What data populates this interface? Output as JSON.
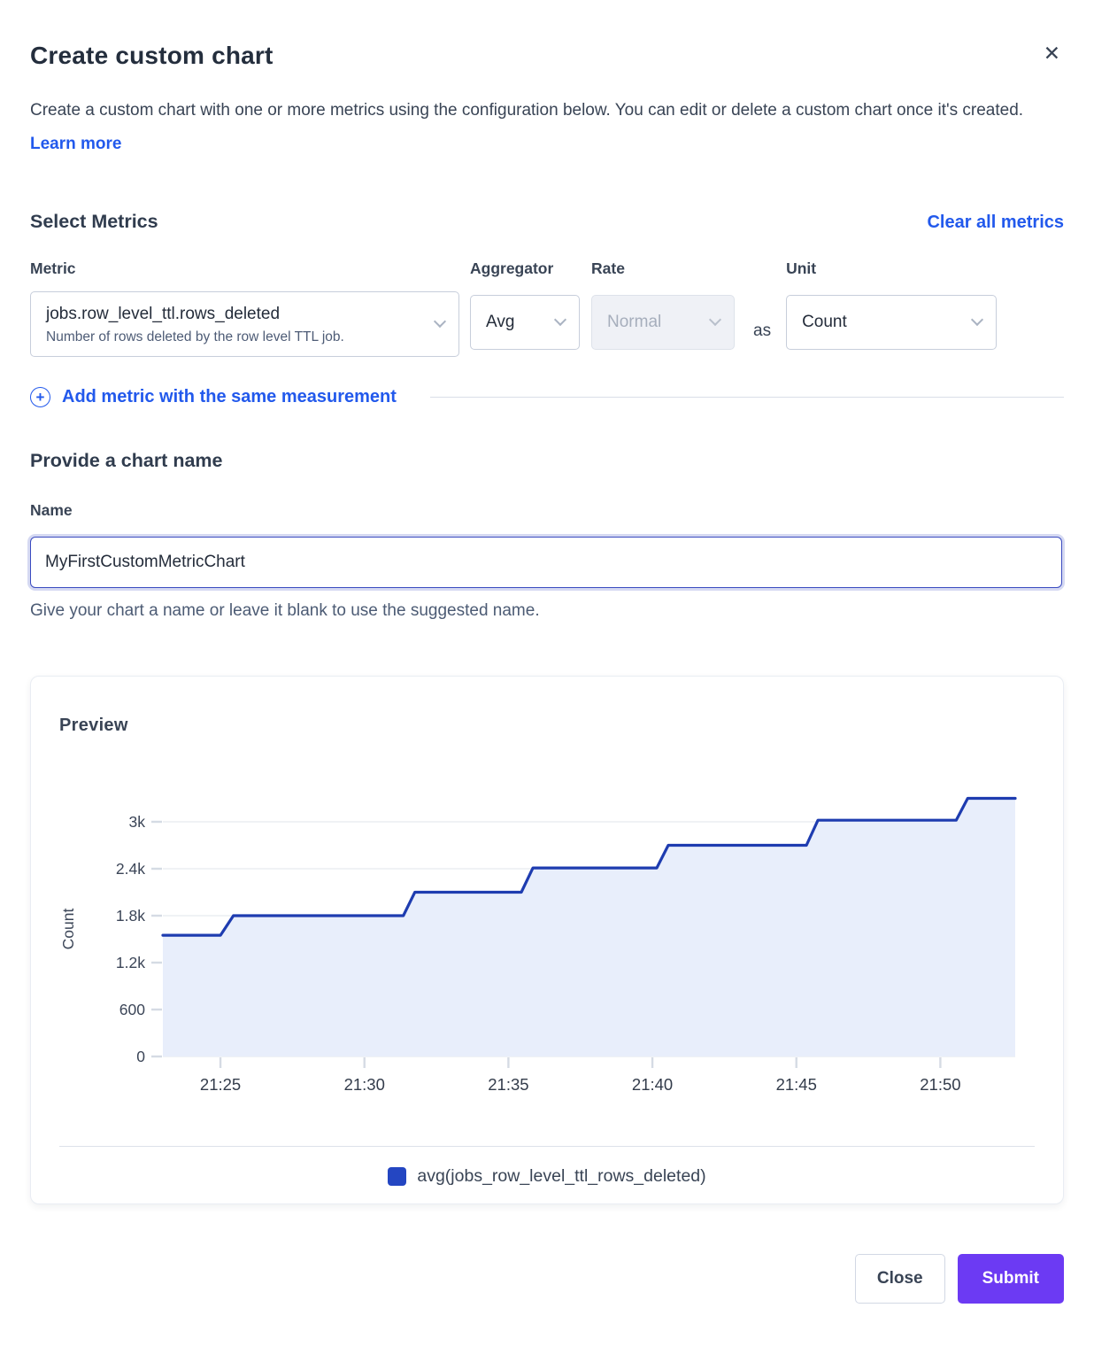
{
  "dialog": {
    "title": "Create custom chart",
    "description": "Create a custom chart with one or more metrics using the configuration below. You can edit or delete a custom chart once it's created.",
    "learn_more_label": "Learn more",
    "close_icon": "close-x"
  },
  "metrics_section": {
    "heading": "Select Metrics",
    "clear_all_label": "Clear all metrics",
    "labels": {
      "metric": "Metric",
      "aggregator": "Aggregator",
      "rate": "Rate",
      "unit": "Unit"
    },
    "metric_row": {
      "metric_value": "jobs.row_level_ttl.rows_deleted",
      "metric_description": "Number of rows deleted by the row level TTL job.",
      "aggregator_value": "Avg",
      "rate_value": "Normal",
      "rate_disabled": true,
      "as_label": "as",
      "unit_value": "Count"
    },
    "add_metric_label": "Add metric with the same measurement"
  },
  "name_section": {
    "heading": "Provide a chart name",
    "label": "Name",
    "value": "MyFirstCustomMetricChart",
    "helper": "Give your chart a name or leave it blank to use the suggested name."
  },
  "preview": {
    "heading": "Preview",
    "legend": [
      {
        "label": "avg(jobs_row_level_ttl_rows_deleted)",
        "color": "#2446c2"
      }
    ]
  },
  "chart_data": {
    "type": "area",
    "title": "Preview",
    "ylabel": "Count",
    "xlabel": "",
    "grid": true,
    "legend_position": "bottom",
    "x_unit": "time (HH:MM)",
    "x_range_minutes_after_21h": [
      23.0,
      52.6
    ],
    "ylim": [
      0,
      3400
    ],
    "x_ticks": [
      {
        "t": 25,
        "label": "21:25"
      },
      {
        "t": 30,
        "label": "21:30"
      },
      {
        "t": 35,
        "label": "21:35"
      },
      {
        "t": 40,
        "label": "21:40"
      },
      {
        "t": 45,
        "label": "21:45"
      },
      {
        "t": 50,
        "label": "21:50"
      }
    ],
    "y_ticks": [
      {
        "v": 0,
        "label": "0"
      },
      {
        "v": 600,
        "label": "600"
      },
      {
        "v": 1200,
        "label": "1.2k"
      },
      {
        "v": 1800,
        "label": "1.8k"
      },
      {
        "v": 2400,
        "label": "2.4k"
      },
      {
        "v": 3000,
        "label": "3k"
      }
    ],
    "series": [
      {
        "name": "avg(jobs_row_level_ttl_rows_deleted)",
        "line_color": "#1e3cb0",
        "fill_color": "#e8eefb",
        "points": [
          [
            23.0,
            1550
          ],
          [
            25.0,
            1550
          ],
          [
            25.45,
            1800
          ],
          [
            31.35,
            1800
          ],
          [
            31.75,
            2100
          ],
          [
            35.45,
            2100
          ],
          [
            35.85,
            2410
          ],
          [
            40.15,
            2410
          ],
          [
            40.55,
            2700
          ],
          [
            45.35,
            2700
          ],
          [
            45.75,
            3020
          ],
          [
            50.55,
            3020
          ],
          [
            50.95,
            3300
          ],
          [
            52.6,
            3300
          ]
        ]
      }
    ]
  },
  "footer": {
    "close_label": "Close",
    "submit_label": "Submit"
  }
}
